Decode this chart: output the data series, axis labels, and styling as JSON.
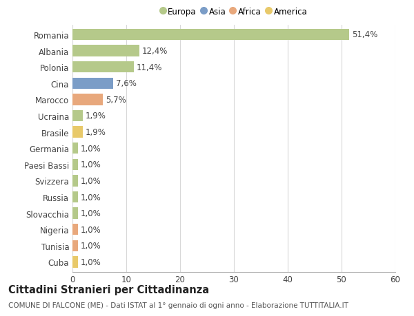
{
  "categories": [
    "Romania",
    "Albania",
    "Polonia",
    "Cina",
    "Marocco",
    "Ucraina",
    "Brasile",
    "Germania",
    "Paesi Bassi",
    "Svizzera",
    "Russia",
    "Slovacchia",
    "Nigeria",
    "Tunisia",
    "Cuba"
  ],
  "values": [
    51.4,
    12.4,
    11.4,
    7.6,
    5.7,
    1.9,
    1.9,
    1.0,
    1.0,
    1.0,
    1.0,
    1.0,
    1.0,
    1.0,
    1.0
  ],
  "labels": [
    "51,4%",
    "12,4%",
    "11,4%",
    "7,6%",
    "5,7%",
    "1,9%",
    "1,9%",
    "1,0%",
    "1,0%",
    "1,0%",
    "1,0%",
    "1,0%",
    "1,0%",
    "1,0%",
    "1,0%"
  ],
  "colors": [
    "#b5c98a",
    "#b5c98a",
    "#b5c98a",
    "#7b9dc7",
    "#e8a87c",
    "#b5c98a",
    "#e8c96a",
    "#b5c98a",
    "#b5c98a",
    "#b5c98a",
    "#b5c98a",
    "#b5c98a",
    "#e8a87c",
    "#e8a87c",
    "#e8c96a"
  ],
  "legend_labels": [
    "Europa",
    "Asia",
    "Africa",
    "America"
  ],
  "legend_colors": [
    "#b5c98a",
    "#7b9dc7",
    "#e8a87c",
    "#e8c96a"
  ],
  "title": "Cittadini Stranieri per Cittadinanza",
  "subtitle": "COMUNE DI FALCONE (ME) - Dati ISTAT al 1° gennaio di ogni anno - Elaborazione TUTTITALIA.IT",
  "xlim": [
    0,
    60
  ],
  "xticks": [
    0,
    10,
    20,
    30,
    40,
    50,
    60
  ],
  "background_color": "#ffffff",
  "grid_color": "#d8d8d8",
  "bar_height": 0.7,
  "label_fontsize": 8.5,
  "tick_fontsize": 8.5,
  "title_fontsize": 10.5,
  "subtitle_fontsize": 7.5
}
